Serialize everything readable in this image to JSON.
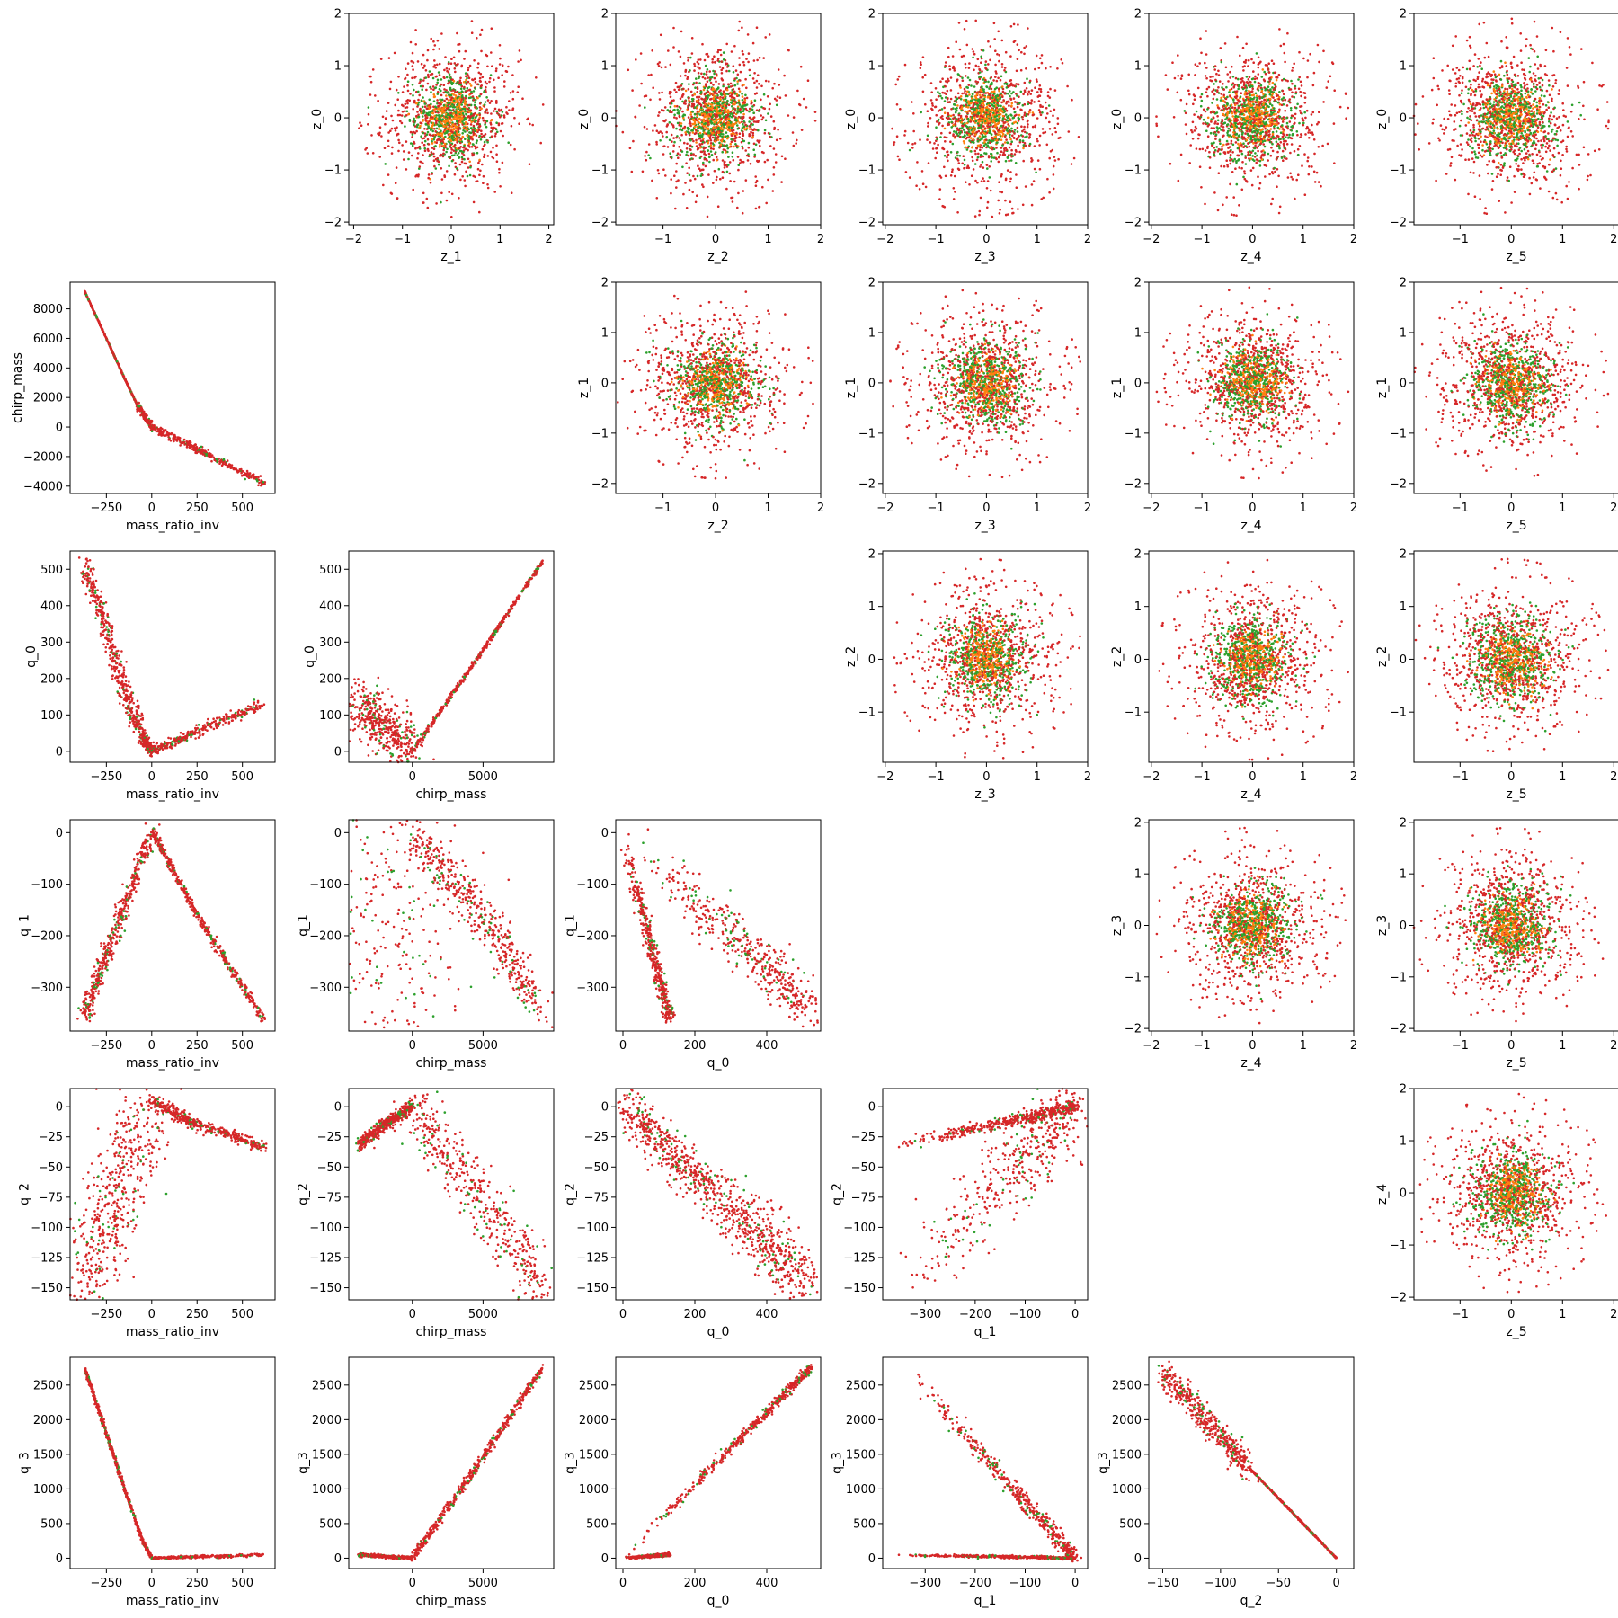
{
  "figure": {
    "layout": "corner pair-plot grid of scatter subplots (6 rows x 6 columns), upper triangle = latent z pairs, lower triangle = physical parameter pairs"
  },
  "colors": {
    "red": "#d62728",
    "green": "#2ca02c",
    "orange": "#ff7f0e"
  },
  "chart_data": [
    {
      "type": "scatter",
      "xlabel": "z_1",
      "ylabel": "z_0",
      "xlim": [
        -2.1,
        2.1
      ],
      "ylim": [
        -2.05,
        2.0
      ],
      "xticks": [
        "-2",
        "-1",
        "0",
        "1",
        "2"
      ],
      "yticks": [
        "-2",
        "-1",
        "0",
        "1",
        "2"
      ],
      "shape": "gaussian-cloud",
      "center": [
        0,
        0
      ],
      "spread": [
        0.7,
        0.7
      ]
    },
    {
      "type": "scatter",
      "xlabel": "z_2",
      "ylabel": "z_0",
      "xlim": [
        -1.9,
        2.0
      ],
      "ylim": [
        -2.05,
        2.0
      ],
      "xticks": [
        "-1",
        "0",
        "1",
        "2"
      ],
      "yticks": [
        "-2",
        "-1",
        "0",
        "1",
        "2"
      ],
      "shape": "gaussian-cloud",
      "center": [
        0,
        0
      ],
      "spread": [
        0.7,
        0.7
      ]
    },
    {
      "type": "scatter",
      "xlabel": "z_3",
      "ylabel": "z_0",
      "xlim": [
        -2.05,
        2.0
      ],
      "ylim": [
        -2.05,
        2.0
      ],
      "xticks": [
        "-2",
        "-1",
        "0",
        "1",
        "2"
      ],
      "yticks": [
        "-2",
        "-1",
        "0",
        "1",
        "2"
      ],
      "shape": "gaussian-cloud",
      "center": [
        0,
        0
      ],
      "spread": [
        0.7,
        0.7
      ]
    },
    {
      "type": "scatter",
      "xlabel": "z_4",
      "ylabel": "z_0",
      "xlim": [
        -2.05,
        2.0
      ],
      "ylim": [
        -2.05,
        2.0
      ],
      "xticks": [
        "-2",
        "-1",
        "0",
        "1",
        "2"
      ],
      "yticks": [
        "-2",
        "-1",
        "0",
        "1",
        "2"
      ],
      "shape": "gaussian-cloud",
      "center": [
        0,
        0
      ],
      "spread": [
        0.7,
        0.7
      ]
    },
    {
      "type": "scatter",
      "xlabel": "z_5",
      "ylabel": "z_0",
      "xlim": [
        -1.9,
        2.1
      ],
      "ylim": [
        -2.05,
        2.0
      ],
      "xticks": [
        "-1",
        "0",
        "1",
        "2"
      ],
      "yticks": [
        "-2",
        "-1",
        "0",
        "1",
        "2"
      ],
      "shape": "gaussian-cloud",
      "center": [
        0,
        0
      ],
      "spread": [
        0.7,
        0.7
      ]
    },
    {
      "type": "scatter",
      "xlabel": "mass_ratio_inv",
      "ylabel": "chirp_mass",
      "xlim": [
        -450,
        680
      ],
      "ylim": [
        -4500,
        9800
      ],
      "xticks": [
        "-250",
        "0",
        "250",
        "500"
      ],
      "yticks": [
        "-4000",
        "-2000",
        "0",
        "2000",
        "4000",
        "6000",
        "8000"
      ],
      "shape": "polyline-band",
      "path": [
        [
          -370,
          9200
        ],
        [
          -250,
          6000
        ],
        [
          -150,
          3300
        ],
        [
          -80,
          1500
        ],
        [
          0,
          0
        ],
        [
          250,
          -1500
        ],
        [
          620,
          -3800
        ]
      ],
      "width": [
        30,
        250
      ]
    },
    {
      "type": "scatter",
      "xlabel": "z_2",
      "ylabel": "z_1",
      "xlim": [
        -1.9,
        2.0
      ],
      "ylim": [
        -2.2,
        2.0
      ],
      "xticks": [
        "-1",
        "0",
        "1",
        "2"
      ],
      "yticks": [
        "-2",
        "-1",
        "0",
        "1",
        "2"
      ],
      "shape": "gaussian-cloud",
      "center": [
        0,
        0
      ],
      "spread": [
        0.7,
        0.7
      ]
    },
    {
      "type": "scatter",
      "xlabel": "z_3",
      "ylabel": "z_1",
      "xlim": [
        -2.05,
        2.0
      ],
      "ylim": [
        -2.2,
        2.0
      ],
      "xticks": [
        "-2",
        "-1",
        "0",
        "1",
        "2"
      ],
      "yticks": [
        "-2",
        "-1",
        "0",
        "1",
        "2"
      ],
      "shape": "gaussian-cloud",
      "center": [
        0,
        0
      ],
      "spread": [
        0.7,
        0.7
      ]
    },
    {
      "type": "scatter",
      "xlabel": "z_4",
      "ylabel": "z_1",
      "xlim": [
        -2.05,
        2.0
      ],
      "ylim": [
        -2.2,
        2.0
      ],
      "xticks": [
        "-2",
        "-1",
        "0",
        "1",
        "2"
      ],
      "yticks": [
        "-2",
        "-1",
        "0",
        "1",
        "2"
      ],
      "shape": "gaussian-cloud",
      "center": [
        0,
        0
      ],
      "spread": [
        0.7,
        0.7
      ]
    },
    {
      "type": "scatter",
      "xlabel": "z_5",
      "ylabel": "z_1",
      "xlim": [
        -1.9,
        2.1
      ],
      "ylim": [
        -2.2,
        2.0
      ],
      "xticks": [
        "-1",
        "0",
        "1",
        "2"
      ],
      "yticks": [
        "-2",
        "-1",
        "0",
        "1",
        "2"
      ],
      "shape": "gaussian-cloud",
      "center": [
        0,
        0
      ],
      "spread": [
        0.7,
        0.7
      ]
    },
    {
      "type": "scatter",
      "xlabel": "mass_ratio_inv",
      "ylabel": "q_0",
      "xlim": [
        -450,
        680
      ],
      "ylim": [
        -30,
        550
      ],
      "xticks": [
        "-250",
        "0",
        "250",
        "500"
      ],
      "yticks": [
        "0",
        "100",
        "200",
        "300",
        "400",
        "500"
      ],
      "shape": "polyline-band",
      "path": [
        [
          -370,
          520
        ],
        [
          -250,
          330
        ],
        [
          -150,
          160
        ],
        [
          -50,
          40
        ],
        [
          0,
          0
        ],
        [
          250,
          55
        ],
        [
          620,
          130
        ]
      ],
      "width": [
        30,
        15
      ]
    },
    {
      "type": "scatter",
      "xlabel": "chirp_mass",
      "ylabel": "q_0",
      "xlim": [
        -4500,
        10000
      ],
      "ylim": [
        -30,
        550
      ],
      "xticks": [
        "0",
        "5000"
      ],
      "yticks": [
        "0",
        "100",
        "200",
        "300",
        "400",
        "500"
      ],
      "shape": "polyline-band",
      "path": [
        [
          -3800,
          130
        ],
        [
          -2000,
          70
        ],
        [
          0,
          0
        ],
        [
          4500,
          250
        ],
        [
          9200,
          520
        ]
      ],
      "width": [
        80,
        6
      ]
    },
    {
      "type": "scatter",
      "xlabel": "z_3",
      "ylabel": "z_2",
      "xlim": [
        -2.05,
        2.0
      ],
      "ylim": [
        -1.95,
        2.05
      ],
      "xticks": [
        "-2",
        "-1",
        "0",
        "1",
        "2"
      ],
      "yticks": [
        "-1",
        "0",
        "1",
        "2"
      ],
      "shape": "gaussian-cloud",
      "center": [
        0,
        0
      ],
      "spread": [
        0.7,
        0.7
      ]
    },
    {
      "type": "scatter",
      "xlabel": "z_4",
      "ylabel": "z_2",
      "xlim": [
        -2.05,
        2.0
      ],
      "ylim": [
        -1.95,
        2.05
      ],
      "xticks": [
        "-2",
        "-1",
        "0",
        "1",
        "2"
      ],
      "yticks": [
        "-1",
        "0",
        "1",
        "2"
      ],
      "shape": "gaussian-cloud",
      "center": [
        0,
        0
      ],
      "spread": [
        0.7,
        0.7
      ]
    },
    {
      "type": "scatter",
      "xlabel": "z_5",
      "ylabel": "z_2",
      "xlim": [
        -1.9,
        2.1
      ],
      "ylim": [
        -1.95,
        2.05
      ],
      "xticks": [
        "-1",
        "0",
        "1",
        "2"
      ],
      "yticks": [
        "-1",
        "0",
        "1",
        "2"
      ],
      "shape": "gaussian-cloud",
      "center": [
        0,
        0
      ],
      "spread": [
        0.7,
        0.7
      ]
    },
    {
      "type": "scatter",
      "xlabel": "mass_ratio_inv",
      "ylabel": "q_1",
      "xlim": [
        -450,
        680
      ],
      "ylim": [
        -385,
        25
      ],
      "xticks": [
        "-250",
        "0",
        "250",
        "500"
      ],
      "yticks": [
        "-300",
        "-200",
        "-100",
        "0"
      ],
      "shape": "polyline-band",
      "path": [
        [
          -370,
          -355
        ],
        [
          -200,
          -190
        ],
        [
          0,
          5
        ],
        [
          250,
          -160
        ],
        [
          620,
          -365
        ]
      ],
      "width": [
        20,
        8
      ]
    },
    {
      "type": "scatter",
      "xlabel": "chirp_mass",
      "ylabel": "q_1",
      "xlim": [
        -4500,
        10000
      ],
      "ylim": [
        -385,
        25
      ],
      "xticks": [
        "0",
        "5000"
      ],
      "yticks": [
        "-300",
        "-200",
        "-100",
        "0"
      ],
      "shape": "polyline-band",
      "path": [
        [
          -3800,
          -360
        ],
        [
          -2000,
          -180
        ],
        [
          0,
          0
        ],
        [
          4500,
          -150
        ],
        [
          9200,
          -335
        ]
      ],
      "width": [
        300,
        40
      ]
    },
    {
      "type": "scatter",
      "xlabel": "q_0",
      "ylabel": "q_1",
      "xlim": [
        -20,
        550
      ],
      "ylim": [
        -385,
        25
      ],
      "xticks": [
        "0",
        "200",
        "400"
      ],
      "yticks": [
        "-300",
        "-200",
        "-100",
        "0"
      ],
      "shape": "two-branch",
      "branches": [
        [
          [
            0,
            0
          ],
          [
            130,
            -360
          ]
        ],
        [
          [
            0,
            0
          ],
          [
            520,
            -340
          ]
        ]
      ],
      "width": [
        10,
        40
      ]
    },
    {
      "type": "scatter",
      "xlabel": "z_4",
      "ylabel": "z_3",
      "xlim": [
        -2.05,
        2.0
      ],
      "ylim": [
        -2.05,
        2.05
      ],
      "xticks": [
        "-2",
        "-1",
        "0",
        "1",
        "2"
      ],
      "yticks": [
        "-2",
        "-1",
        "0",
        "1",
        "2"
      ],
      "shape": "gaussian-cloud",
      "center": [
        0,
        0
      ],
      "spread": [
        0.7,
        0.7
      ]
    },
    {
      "type": "scatter",
      "xlabel": "z_5",
      "ylabel": "z_3",
      "xlim": [
        -1.9,
        2.1
      ],
      "ylim": [
        -2.05,
        2.05
      ],
      "xticks": [
        "-1",
        "0",
        "1",
        "2"
      ],
      "yticks": [
        "-2",
        "-1",
        "0",
        "1",
        "2"
      ],
      "shape": "gaussian-cloud",
      "center": [
        0,
        0
      ],
      "spread": [
        0.7,
        0.7
      ]
    },
    {
      "type": "scatter",
      "xlabel": "mass_ratio_inv",
      "ylabel": "q_2",
      "xlim": [
        -450,
        680
      ],
      "ylim": [
        -160,
        15
      ],
      "xticks": [
        "-250",
        "0",
        "250",
        "500"
      ],
      "yticks": [
        "-150",
        "-125",
        "-100",
        "-75",
        "-50",
        "-25",
        "0"
      ],
      "shape": "polyline-band",
      "path": [
        [
          -370,
          -150
        ],
        [
          -200,
          -70
        ],
        [
          0,
          5
        ],
        [
          250,
          -15
        ],
        [
          620,
          -33
        ]
      ],
      "width": [
        40,
        5
      ]
    },
    {
      "type": "scatter",
      "xlabel": "chirp_mass",
      "ylabel": "q_2",
      "xlim": [
        -4500,
        10000
      ],
      "ylim": [
        -160,
        15
      ],
      "xticks": [
        "0",
        "5000"
      ],
      "yticks": [
        "-150",
        "-125",
        "-100",
        "-75",
        "-50",
        "-25",
        "0"
      ],
      "shape": "polyline-band",
      "path": [
        [
          -3800,
          -33
        ],
        [
          -2000,
          -15
        ],
        [
          0,
          0
        ],
        [
          4500,
          -70
        ],
        [
          9200,
          -150
        ]
      ],
      "width": [
        5,
        25
      ]
    },
    {
      "type": "scatter",
      "xlabel": "q_0",
      "ylabel": "q_2",
      "xlim": [
        -20,
        550
      ],
      "ylim": [
        -160,
        15
      ],
      "xticks": [
        "0",
        "200",
        "400"
      ],
      "yticks": [
        "-150",
        "-125",
        "-100",
        "-75",
        "-50",
        "-25",
        "0"
      ],
      "shape": "polyline-band",
      "path": [
        [
          0,
          0
        ],
        [
          250,
          -70
        ],
        [
          520,
          -150
        ]
      ],
      "width": [
        20,
        25
      ]
    },
    {
      "type": "scatter",
      "xlabel": "q_1",
      "ylabel": "q_2",
      "xlim": [
        -385,
        25
      ],
      "ylim": [
        -160,
        15
      ],
      "xticks": [
        "-300",
        "-200",
        "-100",
        "0"
      ],
      "yticks": [
        "-150",
        "-125",
        "-100",
        "-75",
        "-50",
        "-25",
        "0"
      ],
      "shape": "two-branch",
      "branches": [
        [
          [
            -360,
            -33
          ],
          [
            0,
            0
          ]
        ],
        [
          [
            -340,
            -150
          ],
          [
            0,
            0
          ]
        ]
      ],
      "width": [
        5,
        25
      ]
    },
    {
      "type": "scatter",
      "xlabel": "z_5",
      "ylabel": "z_4",
      "xlim": [
        -1.9,
        2.1
      ],
      "ylim": [
        -2.05,
        2.0
      ],
      "xticks": [
        "-1",
        "0",
        "1",
        "2"
      ],
      "yticks": [
        "-2",
        "-1",
        "0",
        "1",
        "2"
      ],
      "shape": "gaussian-cloud",
      "center": [
        0,
        0
      ],
      "spread": [
        0.7,
        0.7
      ]
    },
    {
      "type": "scatter",
      "xlabel": "mass_ratio_inv",
      "ylabel": "q_3",
      "xlim": [
        -450,
        680
      ],
      "ylim": [
        -150,
        2900
      ],
      "xticks": [
        "-250",
        "0",
        "250",
        "500"
      ],
      "yticks": [
        "0",
        "500",
        "1000",
        "1500",
        "2000",
        "2500"
      ],
      "shape": "polyline-band",
      "path": [
        [
          -370,
          2750
        ],
        [
          -250,
          1800
        ],
        [
          -150,
          1000
        ],
        [
          -50,
          250
        ],
        [
          0,
          0
        ],
        [
          250,
          20
        ],
        [
          620,
          50
        ]
      ],
      "width": [
        30,
        20
      ]
    },
    {
      "type": "scatter",
      "xlabel": "chirp_mass",
      "ylabel": "q_3",
      "xlim": [
        -4500,
        10000
      ],
      "ylim": [
        -150,
        2900
      ],
      "xticks": [
        "0",
        "5000"
      ],
      "yticks": [
        "0",
        "500",
        "1000",
        "1500",
        "2000",
        "2500"
      ],
      "shape": "polyline-band",
      "path": [
        [
          -3800,
          50
        ],
        [
          -2000,
          25
        ],
        [
          0,
          0
        ],
        [
          4500,
          1300
        ],
        [
          9200,
          2750
        ]
      ],
      "width": [
        20,
        60
      ]
    },
    {
      "type": "scatter",
      "xlabel": "q_0",
      "ylabel": "q_3",
      "xlim": [
        -20,
        550
      ],
      "ylim": [
        -150,
        2900
      ],
      "xticks": [
        "0",
        "200",
        "400"
      ],
      "yticks": [
        "0",
        "500",
        "1000",
        "1500",
        "2000",
        "2500"
      ],
      "shape": "two-branch",
      "branches": [
        [
          [
            0,
            0
          ],
          [
            520,
            2750
          ]
        ],
        [
          [
            0,
            0
          ],
          [
            130,
            50
          ]
        ]
      ],
      "width": [
        60,
        20
      ]
    },
    {
      "type": "scatter",
      "xlabel": "q_1",
      "ylabel": "q_3",
      "xlim": [
        -385,
        25
      ],
      "ylim": [
        -150,
        2900
      ],
      "xticks": [
        "-300",
        "-200",
        "-100",
        "0"
      ],
      "yticks": [
        "0",
        "500",
        "1000",
        "1500",
        "2000",
        "2500"
      ],
      "shape": "two-branch",
      "branches": [
        [
          [
            -360,
            50
          ],
          [
            0,
            0
          ]
        ],
        [
          [
            -340,
            2750
          ],
          [
            0,
            0
          ]
        ]
      ],
      "width": [
        20,
        100
      ]
    },
    {
      "type": "scatter",
      "xlabel": "q_2",
      "ylabel": "q_3",
      "xlim": [
        -162,
        15
      ],
      "ylim": [
        -150,
        2900
      ],
      "xticks": [
        "-150",
        "-100",
        "-50",
        "0"
      ],
      "yticks": [
        "0",
        "500",
        "1000",
        "1500",
        "2000",
        "2500"
      ],
      "shape": "polyline-band",
      "path": [
        [
          -150,
          2700
        ],
        [
          -75,
          1300
        ],
        [
          0,
          0
        ]
      ],
      "width": [
        200,
        8
      ]
    }
  ]
}
